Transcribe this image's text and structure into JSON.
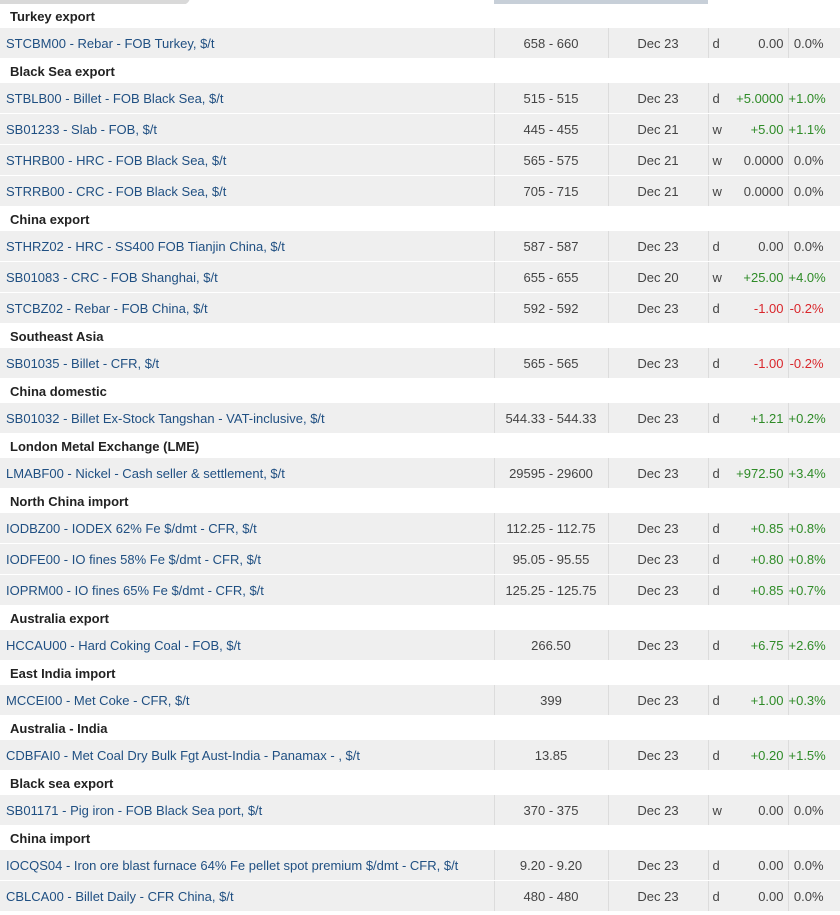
{
  "colors": {
    "positive": "#2e8b27",
    "negative": "#d9262b",
    "neutral": "#444444",
    "link": "#1f4f82"
  },
  "groups": [
    {
      "title": "Turkey export",
      "rows": [
        {
          "name": "STCBM00 - Rebar - FOB Turkey, $/t",
          "price": "658 - 660",
          "date": "Dec 23",
          "freq": "d",
          "change": "0.00",
          "pct": "0.0%",
          "dir": "flat"
        }
      ]
    },
    {
      "title": "Black Sea export",
      "rows": [
        {
          "name": "STBLB00 - Billet - FOB Black Sea, $/t",
          "price": "515 - 515",
          "date": "Dec 23",
          "freq": "d",
          "change": "+5.0000",
          "pct": "+1.0%",
          "dir": "pos"
        },
        {
          "name": "SB01233 - Slab - FOB, $/t",
          "price": "445 - 455",
          "date": "Dec 21",
          "freq": "w",
          "change": "+5.00",
          "pct": "+1.1%",
          "dir": "pos"
        },
        {
          "name": "STHRB00 - HRC - FOB Black Sea, $/t",
          "price": "565 - 575",
          "date": "Dec 21",
          "freq": "w",
          "change": "0.0000",
          "pct": "0.0%",
          "dir": "flat"
        },
        {
          "name": "STRRB00 - CRC - FOB Black Sea, $/t",
          "price": "705 - 715",
          "date": "Dec 21",
          "freq": "w",
          "change": "0.0000",
          "pct": "0.0%",
          "dir": "flat"
        }
      ]
    },
    {
      "title": "China export",
      "rows": [
        {
          "name": "STHRZ02 - HRC - SS400 FOB Tianjin China, $/t",
          "price": "587 - 587",
          "date": "Dec 23",
          "freq": "d",
          "change": "0.00",
          "pct": "0.0%",
          "dir": "flat"
        },
        {
          "name": "SB01083 - CRC - FOB Shanghai, $/t",
          "price": "655 - 655",
          "date": "Dec 20",
          "freq": "w",
          "change": "+25.00",
          "pct": "+4.0%",
          "dir": "pos"
        },
        {
          "name": "STCBZ02 - Rebar - FOB China, $/t",
          "price": "592 - 592",
          "date": "Dec 23",
          "freq": "d",
          "change": "-1.00",
          "pct": "-0.2%",
          "dir": "neg"
        }
      ]
    },
    {
      "title": "Southeast Asia",
      "rows": [
        {
          "name": "SB01035 - Billet - CFR, $/t",
          "price": "565 - 565",
          "date": "Dec 23",
          "freq": "d",
          "change": "-1.00",
          "pct": "-0.2%",
          "dir": "neg"
        }
      ]
    },
    {
      "title": "China domestic",
      "rows": [
        {
          "name": "SB01032 - Billet Ex-Stock Tangshan - VAT-inclusive, $/t",
          "price": "544.33 - 544.33",
          "date": "Dec 23",
          "freq": "d",
          "change": "+1.21",
          "pct": "+0.2%",
          "dir": "pos"
        }
      ]
    },
    {
      "title": "London Metal Exchange (LME)",
      "rows": [
        {
          "name": "LMABF00 - Nickel - Cash seller & settlement, $/t",
          "price": "29595 - 29600",
          "date": "Dec 23",
          "freq": "d",
          "change": "+972.50",
          "pct": "+3.4%",
          "dir": "pos"
        }
      ]
    },
    {
      "title": "North China import",
      "rows": [
        {
          "name": "IODBZ00 - IODEX 62% Fe $/dmt - CFR, $/t",
          "price": "112.25 - 112.75",
          "date": "Dec 23",
          "freq": "d",
          "change": "+0.85",
          "pct": "+0.8%",
          "dir": "pos"
        },
        {
          "name": "IODFE00 - IO fines 58% Fe $/dmt - CFR, $/t",
          "price": "95.05 - 95.55",
          "date": "Dec 23",
          "freq": "d",
          "change": "+0.80",
          "pct": "+0.8%",
          "dir": "pos"
        },
        {
          "name": "IOPRM00 - IO fines 65% Fe $/dmt - CFR, $/t",
          "price": "125.25 - 125.75",
          "date": "Dec 23",
          "freq": "d",
          "change": "+0.85",
          "pct": "+0.7%",
          "dir": "pos"
        }
      ]
    },
    {
      "title": "Australia export",
      "rows": [
        {
          "name": "HCCAU00 - Hard Coking Coal - FOB, $/t",
          "price": "266.50",
          "date": "Dec 23",
          "freq": "d",
          "change": "+6.75",
          "pct": "+2.6%",
          "dir": "pos"
        }
      ]
    },
    {
      "title": "East India import",
      "rows": [
        {
          "name": "MCCEI00 - Met Coke - CFR, $/t",
          "price": "399",
          "date": "Dec 23",
          "freq": "d",
          "change": "+1.00",
          "pct": "+0.3%",
          "dir": "pos"
        }
      ]
    },
    {
      "title": "Australia - India",
      "rows": [
        {
          "name": "CDBFAI0 - Met Coal Dry Bulk Fgt Aust-India - Panamax - , $/t",
          "price": "13.85",
          "date": "Dec 23",
          "freq": "d",
          "change": "+0.20",
          "pct": "+1.5%",
          "dir": "pos"
        }
      ]
    },
    {
      "title": "Black sea export",
      "rows": [
        {
          "name": "SB01171 - Pig iron - FOB Black Sea port, $/t",
          "price": "370 - 375",
          "date": "Dec 23",
          "freq": "w",
          "change": "0.00",
          "pct": "0.0%",
          "dir": "flat"
        }
      ]
    },
    {
      "title": "China import",
      "rows": [
        {
          "name": "IOCQS04 - Iron ore blast furnace 64% Fe pellet spot premium $/dmt - CFR, $/t",
          "price": "9.20 - 9.20",
          "date": "Dec 23",
          "freq": "d",
          "change": "0.00",
          "pct": "0.0%",
          "dir": "flat"
        },
        {
          "name": "CBLCA00 - Billet Daily - CFR China, $/t",
          "price": "480 - 480",
          "date": "Dec 23",
          "freq": "d",
          "change": "0.00",
          "pct": "0.0%",
          "dir": "flat"
        }
      ]
    }
  ]
}
